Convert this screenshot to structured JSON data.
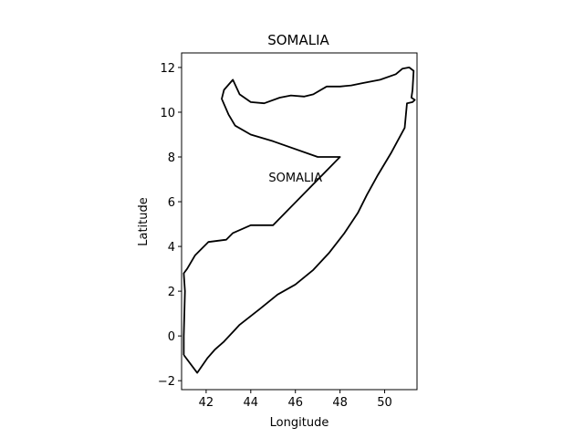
{
  "chart_data": {
    "type": "map",
    "title": "SOMALIA",
    "xlabel": "Longitude",
    "ylabel": "Latitude",
    "xlim": [
      40.9,
      51.45
    ],
    "ylim": [
      -2.4,
      12.65
    ],
    "xticks": [
      42,
      44,
      46,
      48,
      50
    ],
    "yticks": [
      -2,
      0,
      2,
      4,
      6,
      8,
      10,
      12
    ],
    "grid": false,
    "line_color": "#000000",
    "annotation": {
      "text": "SOMALIA",
      "x": 46.0,
      "y": 7.1
    },
    "boundary": [
      [
        41.0,
        -0.85
      ],
      [
        41.6,
        -1.65
      ],
      [
        42.05,
        -1.0
      ],
      [
        42.4,
        -0.6
      ],
      [
        42.8,
        -0.25
      ],
      [
        43.5,
        0.5
      ],
      [
        44.4,
        1.2
      ],
      [
        45.2,
        1.85
      ],
      [
        46.0,
        2.3
      ],
      [
        46.8,
        2.95
      ],
      [
        47.5,
        3.7
      ],
      [
        48.2,
        4.6
      ],
      [
        48.8,
        5.5
      ],
      [
        49.2,
        6.3
      ],
      [
        49.7,
        7.2
      ],
      [
        50.3,
        8.2
      ],
      [
        50.9,
        9.3
      ],
      [
        51.0,
        10.4
      ],
      [
        51.25,
        10.45
      ],
      [
        51.35,
        10.55
      ],
      [
        51.2,
        10.65
      ],
      [
        51.25,
        11.0
      ],
      [
        51.3,
        11.85
      ],
      [
        51.1,
        12.0
      ],
      [
        50.8,
        11.95
      ],
      [
        50.5,
        11.7
      ],
      [
        49.8,
        11.45
      ],
      [
        49.0,
        11.3
      ],
      [
        48.5,
        11.2
      ],
      [
        48.0,
        11.15
      ],
      [
        47.4,
        11.15
      ],
      [
        46.8,
        10.8
      ],
      [
        46.4,
        10.7
      ],
      [
        45.8,
        10.75
      ],
      [
        45.3,
        10.65
      ],
      [
        44.6,
        10.4
      ],
      [
        44.0,
        10.45
      ],
      [
        43.5,
        10.8
      ],
      [
        43.2,
        11.45
      ],
      [
        42.8,
        11.0
      ],
      [
        42.7,
        10.6
      ],
      [
        43.0,
        9.9
      ],
      [
        43.3,
        9.4
      ],
      [
        44.0,
        9.0
      ],
      [
        45.0,
        8.7
      ],
      [
        47.0,
        8.0
      ],
      [
        48.0,
        8.0
      ],
      [
        45.0,
        4.95
      ],
      [
        44.0,
        4.95
      ],
      [
        43.2,
        4.6
      ],
      [
        42.9,
        4.3
      ],
      [
        42.1,
        4.2
      ],
      [
        41.5,
        3.6
      ],
      [
        41.15,
        3.0
      ],
      [
        41.0,
        2.8
      ],
      [
        41.05,
        2.0
      ],
      [
        41.0,
        0.0
      ],
      [
        41.0,
        -0.85
      ]
    ]
  }
}
